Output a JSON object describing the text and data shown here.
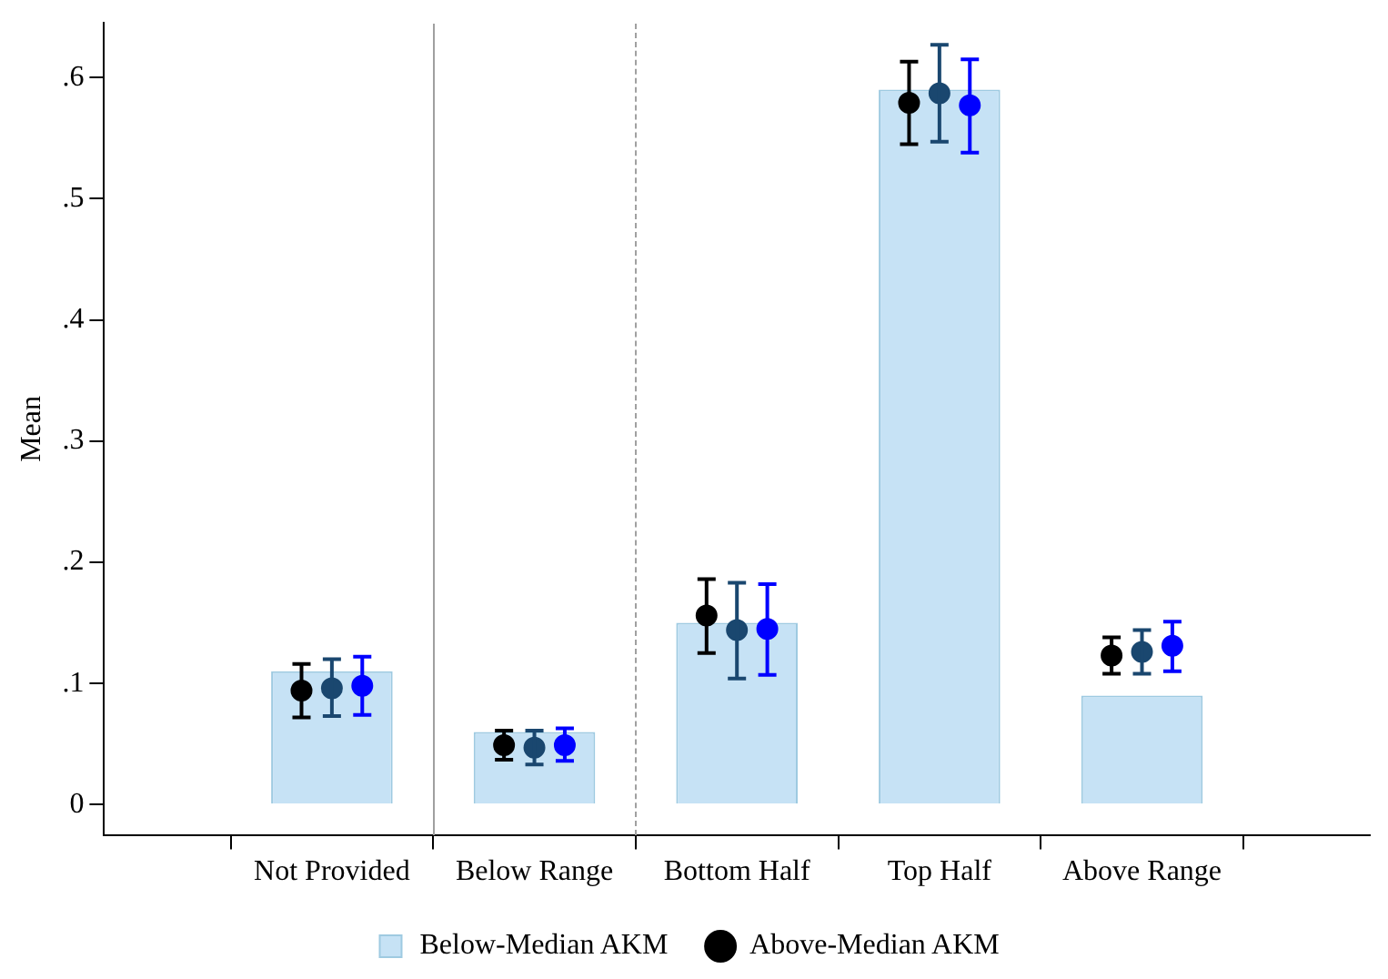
{
  "chart_data": {
    "type": "bar",
    "ylabel": "Mean",
    "categories": [
      "Not Provided",
      "Below Range",
      "Bottom Half",
      "Top Half",
      "Above Range"
    ],
    "series": [
      {
        "name": "Below-Median AKM",
        "color": "#c6e2f5",
        "values": [
          0.11,
          0.06,
          0.15,
          0.59,
          0.09
        ]
      },
      {
        "type": "scatter",
        "name": "Above-Median AKM",
        "color": "#000000",
        "x": [
          "Not Provided",
          "Below Range",
          "Bottom Half",
          "Top Half",
          "Above Range"
        ],
        "values": [
          0.094,
          0.049,
          0.156,
          0.579,
          0.123
        ],
        "errors": [
          [
            0.072,
            0.116
          ],
          [
            0.037,
            0.061
          ],
          [
            0.125,
            0.186
          ],
          [
            0.545,
            0.613
          ],
          [
            0.108,
            0.138
          ]
        ]
      },
      {
        "type": "scatter",
        "color": "#1a476f",
        "x": [
          "Not Provided",
          "Below Range",
          "Bottom Half",
          "Top Half",
          "Above Range"
        ],
        "values": [
          0.096,
          0.047,
          0.144,
          0.587,
          0.126
        ],
        "errors": [
          [
            0.073,
            0.12
          ],
          [
            0.033,
            0.061
          ],
          [
            0.104,
            0.183
          ],
          [
            0.547,
            0.627
          ],
          [
            0.108,
            0.144
          ]
        ]
      },
      {
        "type": "scatter",
        "color": "#0000ff",
        "x": [
          "Not Provided",
          "Below Range",
          "Bottom Half",
          "Top Half",
          "Above Range"
        ],
        "values": [
          0.098,
          0.049,
          0.145,
          0.577,
          0.131
        ],
        "errors": [
          [
            0.074,
            0.122
          ],
          [
            0.036,
            0.063
          ],
          [
            0.107,
            0.182
          ],
          [
            0.538,
            0.615
          ],
          [
            0.11,
            0.151
          ]
        ]
      }
    ],
    "ylim": [
      -0.025,
      0.645
    ],
    "yticks": [
      {
        "value": 0,
        "label": "0"
      },
      {
        "value": 0.1,
        "label": ".1"
      },
      {
        "value": 0.2,
        "label": ".2"
      },
      {
        "value": 0.3,
        "label": ".3"
      },
      {
        "value": 0.4,
        "label": ".4"
      },
      {
        "value": 0.5,
        "label": ".5"
      },
      {
        "value": 0.6,
        "label": ".6"
      }
    ],
    "grid": false,
    "legend": "bottom",
    "marker": "circle"
  }
}
